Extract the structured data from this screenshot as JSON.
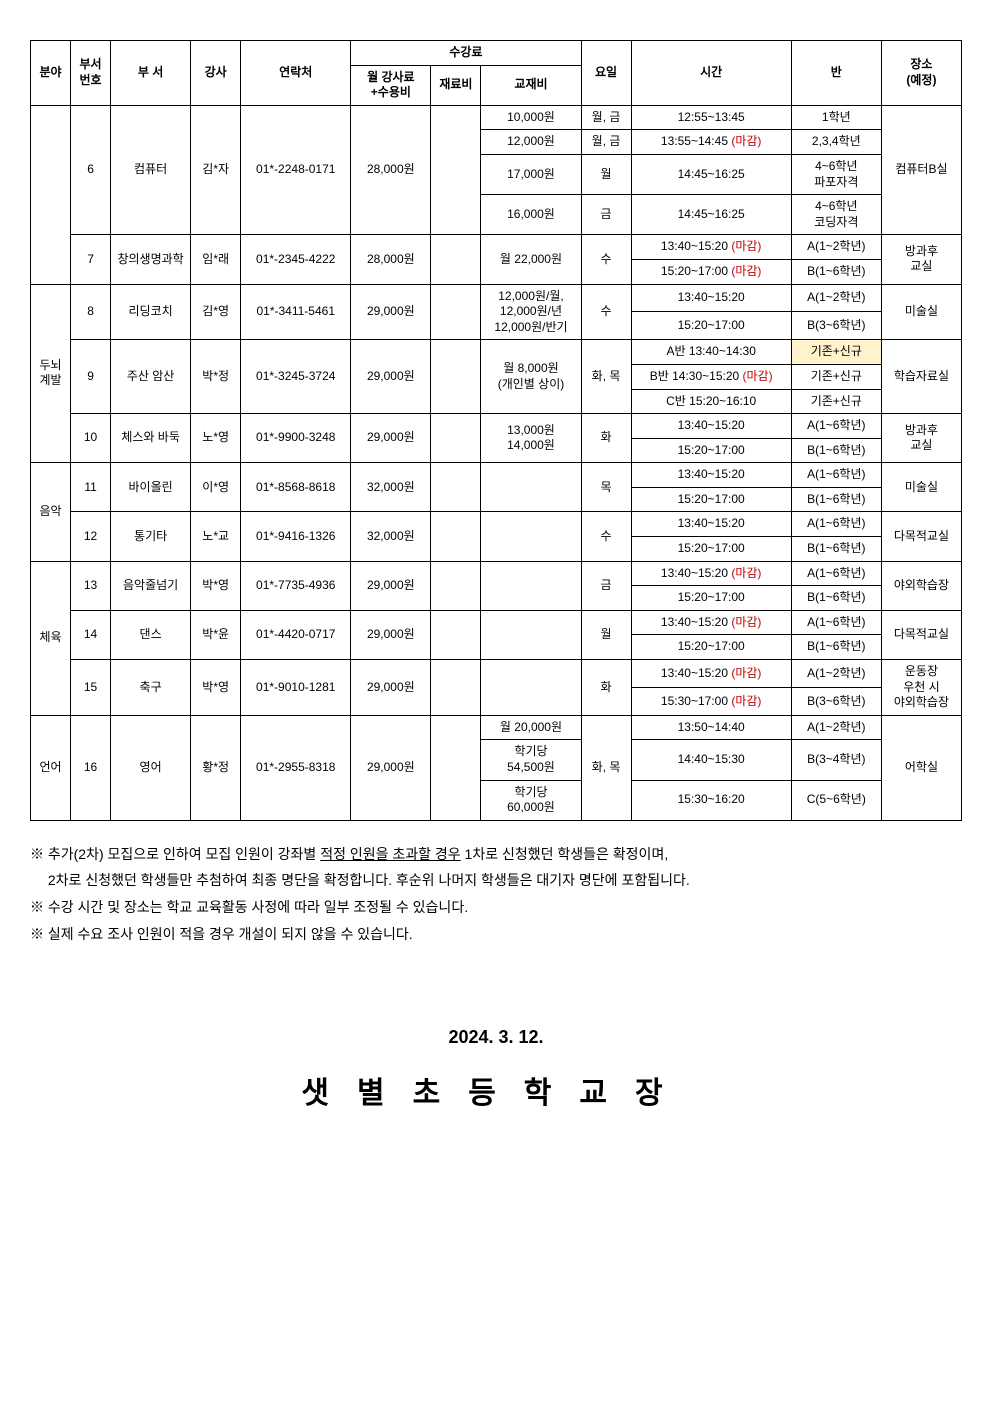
{
  "headers": {
    "field": "분야",
    "deptNo": "부서\n번호",
    "dept": "부  서",
    "instructor": "강사",
    "contact": "연락처",
    "feeGroup": "수강료",
    "monthlyFee": "월 강사료\n+수용비",
    "materialFee": "재료비",
    "textbookFee": "교재비",
    "day": "요일",
    "time": "시간",
    "classLabel": "반",
    "place": "장소\n(예정)"
  },
  "categories": {
    "brain": "두뇌\n계발",
    "music": "음악",
    "pe": "체육",
    "lang": "언어"
  },
  "rows": [
    {
      "no": "6",
      "dept": "컴퓨터",
      "inst": "김*자",
      "contact": "01*-2248-0171",
      "fee": "28,000원",
      "place": "컴퓨터B실"
    },
    {
      "no": "7",
      "dept": "창의생명과학",
      "inst": "임*래",
      "contact": "01*-2345-4222",
      "fee": "28,000원",
      "place": "방과후\n교실"
    },
    {
      "no": "8",
      "dept": "리딩코치",
      "inst": "김*영",
      "contact": "01*-3411-5461",
      "fee": "29,000원",
      "place": "미술실"
    },
    {
      "no": "9",
      "dept": "주산 암산",
      "inst": "박*정",
      "contact": "01*-3245-3724",
      "fee": "29,000원",
      "place": "학습자료실"
    },
    {
      "no": "10",
      "dept": "체스와 바둑",
      "inst": "노*영",
      "contact": "01*-9900-3248",
      "fee": "29,000원",
      "place": "방과후\n교실"
    },
    {
      "no": "11",
      "dept": "바이올린",
      "inst": "이*영",
      "contact": "01*-8568-8618",
      "fee": "32,000원",
      "place": "미술실"
    },
    {
      "no": "12",
      "dept": "통기타",
      "inst": "노*교",
      "contact": "01*-9416-1326",
      "fee": "32,000원",
      "place": "다목적교실"
    },
    {
      "no": "13",
      "dept": "음악줄넘기",
      "inst": "박*영",
      "contact": "01*-7735-4936",
      "fee": "29,000원",
      "place": "야외학습장"
    },
    {
      "no": "14",
      "dept": "댄스",
      "inst": "박*윤",
      "contact": "01*-4420-0717",
      "fee": "29,000원",
      "place": "다목적교실"
    },
    {
      "no": "15",
      "dept": "축구",
      "inst": "박*영",
      "contact": "01*-9010-1281",
      "fee": "29,000원"
    },
    {
      "no": "16",
      "dept": "영어",
      "inst": "황*정",
      "contact": "01*-2955-8318",
      "fee": "29,000원",
      "place": "어학실"
    }
  ],
  "slots": {
    "c6": [
      {
        "book": "10,000원",
        "day": "월, 금",
        "time": "12:55~13:45",
        "cls": "1학년"
      },
      {
        "book": "12,000원",
        "day": "월, 금",
        "time": "13:55~14:45 ",
        "closed": "(마감)",
        "cls": "2,3,4학년"
      },
      {
        "book": "17,000원",
        "day": "월",
        "time": "14:45~16:25",
        "cls": "4~6학년\n파포자격"
      },
      {
        "book": "16,000원",
        "day": "금",
        "time": "14:45~16:25",
        "cls": "4~6학년\n코딩자격"
      }
    ],
    "c7": [
      {
        "book": "월 22,000원",
        "day": "수",
        "time": "13:40~15:20 ",
        "closed": "(마감)",
        "cls": "A(1~2학년)"
      },
      {
        "time": "15:20~17:00 ",
        "closed": "(마감)",
        "cls": "B(1~6학년)"
      }
    ],
    "c8": [
      {
        "book": "12,000원/월,\n12,000원/년\n12,000원/반기",
        "day": "수",
        "time": "13:40~15:20",
        "cls": "A(1~2학년)"
      },
      {
        "time": "15:20~17:00",
        "cls": "B(3~6학년)"
      }
    ],
    "c9": [
      {
        "book": "월 8,000원\n(개인별 상이)",
        "day": "화, 목",
        "time": "A반 13:40~14:30",
        "cls": "기존+신규",
        "hl": true
      },
      {
        "time": "B반 14:30~15:20 ",
        "closed": "(마감)",
        "cls": "기존+신규"
      },
      {
        "time": "C반 15:20~16:10",
        "cls": "기존+신규"
      }
    ],
    "c10": [
      {
        "book": "13,000원\n14,000원",
        "day": "화",
        "time": "13:40~15:20",
        "cls": "A(1~6학년)"
      },
      {
        "time": "15:20~17:00",
        "cls": "B(1~6학년)"
      }
    ],
    "c11": [
      {
        "day": "목",
        "time": "13:40~15:20",
        "cls": "A(1~6학년)"
      },
      {
        "time": "15:20~17:00",
        "cls": "B(1~6학년)"
      }
    ],
    "c12": [
      {
        "day": "수",
        "time": "13:40~15:20",
        "cls": "A(1~6학년)"
      },
      {
        "time": "15:20~17:00",
        "cls": "B(1~6학년)"
      }
    ],
    "c13": [
      {
        "day": "금",
        "time": "13:40~15:20 ",
        "closed": "(마감)",
        "cls": "A(1~6학년)"
      },
      {
        "time": "15:20~17:00",
        "cls": "B(1~6학년)"
      }
    ],
    "c14": [
      {
        "day": "월",
        "time": "13:40~15:20 ",
        "closed": "(마감)",
        "cls": "A(1~6학년)"
      },
      {
        "time": "15:20~17:00",
        "cls": "B(1~6학년)"
      }
    ],
    "c15": [
      {
        "day": "화",
        "time": "13:40~15:20 ",
        "closed": "(마감)",
        "cls": "A(1~2학년)",
        "place": "운동장\n우천 시\n야외학습장"
      },
      {
        "time": "15:30~17:00 ",
        "closed": "(마감)",
        "cls": "B(3~6학년)"
      }
    ],
    "c16": [
      {
        "book": "월 20,000원",
        "day": "화, 목",
        "time": "13:50~14:40",
        "cls": "A(1~2학년)"
      },
      {
        "book": "학기당\n54,500원",
        "time": "14:40~15:30",
        "cls": "B(3~4학년)"
      },
      {
        "book": "학기당\n60,000원",
        "time": "15:30~16:20",
        "cls": "C(5~6학년)"
      }
    ]
  },
  "notes": {
    "n1a": "※ 추가(2차) 모집으로 인하여 모집 인원이 강좌별 ",
    "n1b": "적정 인원을 초과할 경우",
    "n1c": " 1차로 신청했던 학생들은 확정이며,",
    "n2": "　 2차로 신청했던 학생들만 추첨하여 최종 명단을 확정합니다. 후순위 나머지 학생들은 대기자 명단에 포함됩니다.",
    "n3": "※ 수강 시간 및 장소는 학교 교육활동 사정에 따라 일부 조정될 수 있습니다.",
    "n4": "※ 실제 수요 조사 인원이 적을 경우 개설이 되지 않을 수 있습니다."
  },
  "footer": {
    "date": "2024. 3. 12.",
    "org": "샛별초등학교장"
  },
  "colWidths": [
    "4%",
    "4%",
    "8%",
    "5%",
    "11%",
    "8%",
    "5%",
    "10%",
    "5%",
    "16%",
    "9%",
    "8%"
  ]
}
